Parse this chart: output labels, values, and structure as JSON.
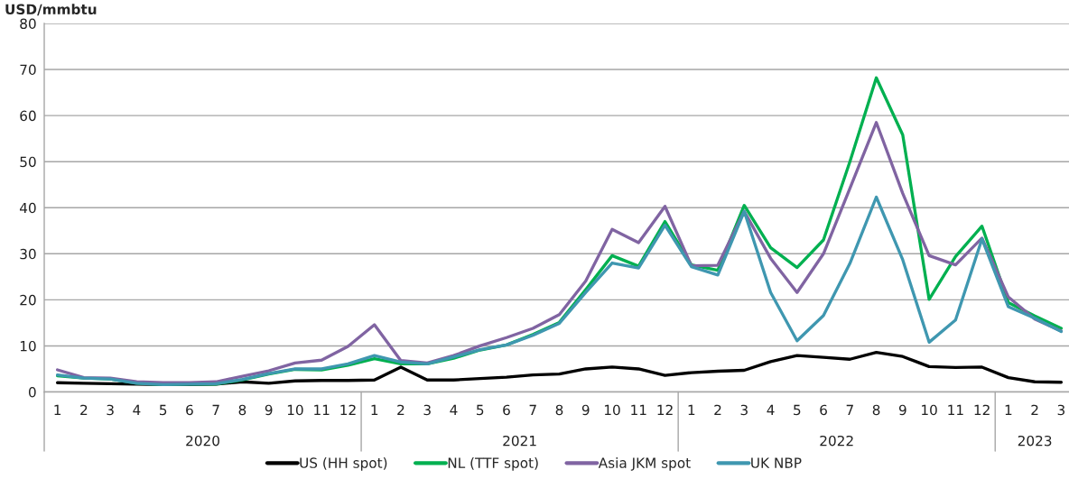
{
  "chart_data": {
    "type": "line",
    "ylabel": "USD/mmbtu",
    "categories": [
      "1",
      "2",
      "3",
      "4",
      "5",
      "6",
      "7",
      "8",
      "9",
      "10",
      "11",
      "12",
      "1",
      "2",
      "3",
      "4",
      "5",
      "6",
      "7",
      "8",
      "9",
      "10",
      "11",
      "12",
      "1",
      "2",
      "3",
      "4",
      "5",
      "6",
      "7",
      "8",
      "9",
      "10",
      "11",
      "12",
      "1",
      "2",
      "3"
    ],
    "annotations": [
      "2020",
      "2021",
      "2022",
      "2023"
    ],
    "series": [
      {
        "name": "US (HH spot)",
        "color": "#000000",
        "values": [
          2.0,
          1.9,
          1.8,
          1.7,
          1.6,
          1.6,
          1.7,
          2.2,
          1.9,
          2.4,
          2.5,
          2.5,
          2.6,
          5.4,
          2.6,
          2.6,
          2.9,
          3.2,
          3.7,
          3.9,
          5.0,
          5.4,
          5.0,
          3.6,
          4.2,
          4.5,
          4.7,
          6.6,
          7.9,
          7.5,
          7.1,
          8.6,
          7.7,
          5.5,
          5.3,
          5.4,
          3.1,
          2.2,
          2.1
        ]
      },
      {
        "name": "NL (TTF spot)",
        "color": "#00b050",
        "values": [
          3.5,
          3.0,
          2.8,
          1.9,
          1.6,
          1.7,
          1.7,
          2.6,
          3.9,
          4.9,
          4.8,
          5.8,
          7.2,
          6.1,
          6.1,
          7.3,
          9.1,
          10.2,
          12.5,
          15.1,
          22.2,
          29.6,
          27.3,
          37.0,
          27.6,
          26.4,
          40.5,
          31.3,
          27.0,
          33.0,
          50.0,
          68.2,
          55.8,
          20.1,
          29.4,
          36.0,
          19.4,
          16.5,
          13.8
        ]
      },
      {
        "name": "Asia JKM spot",
        "color": "#8064a2",
        "values": [
          4.8,
          3.1,
          3.0,
          2.2,
          2.0,
          2.0,
          2.2,
          3.4,
          4.6,
          6.3,
          6.9,
          9.9,
          14.6,
          6.8,
          6.3,
          7.9,
          10.0,
          11.8,
          13.8,
          16.8,
          24.1,
          35.3,
          32.4,
          40.3,
          27.4,
          27.5,
          39.2,
          29.0,
          21.6,
          30.0,
          44.2,
          58.5,
          43.1,
          29.6,
          27.6,
          33.4,
          20.6,
          15.8,
          13.2
        ]
      },
      {
        "name": "UK NBP",
        "color": "#3f97b0",
        "values": [
          3.7,
          3.0,
          2.8,
          1.9,
          1.6,
          1.7,
          1.8,
          2.7,
          4.0,
          5.0,
          5.0,
          6.1,
          7.9,
          6.5,
          6.1,
          7.6,
          9.2,
          10.2,
          12.3,
          14.9,
          21.6,
          28.0,
          26.9,
          36.2,
          27.2,
          25.4,
          39.2,
          21.6,
          11.1,
          16.6,
          27.9,
          42.3,
          28.7,
          10.8,
          15.6,
          33.2,
          18.5,
          16.0,
          13.1
        ]
      }
    ],
    "ylim": [
      0,
      80
    ],
    "yticks": [
      0,
      10,
      20,
      30,
      40,
      50,
      60,
      70,
      80
    ],
    "grid": "y",
    "legend": "bottom",
    "marker": "none",
    "line_style": "solid"
  }
}
